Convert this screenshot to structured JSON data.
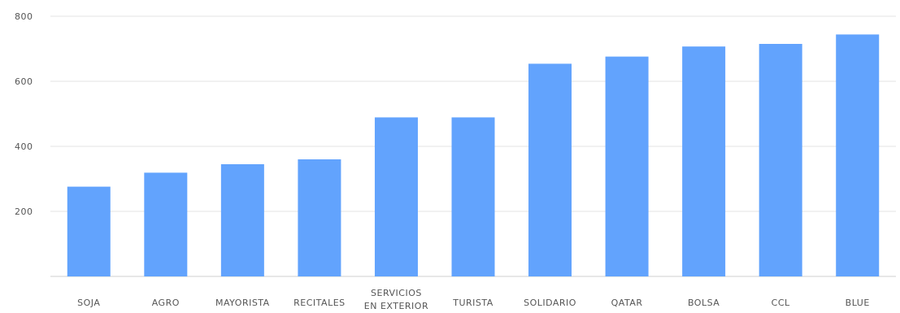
{
  "chart_data": {
    "type": "bar",
    "title": "",
    "xlabel": "",
    "ylabel": "",
    "ylim": [
      0,
      800
    ],
    "yticks": [
      200,
      400,
      600,
      800
    ],
    "grid": true,
    "bar_color": "#62a3fd",
    "categories": [
      [
        "SOJA"
      ],
      [
        "AGRO"
      ],
      [
        "MAYORISTA"
      ],
      [
        "RECITALES"
      ],
      [
        "SERVICIOS",
        "EN EXTERIOR"
      ],
      [
        "TURISTA"
      ],
      [
        "SOLIDARIO"
      ],
      [
        "QATAR"
      ],
      [
        "BOLSA"
      ],
      [
        "CCL"
      ],
      [
        "BLUE"
      ]
    ],
    "values": [
      276,
      319,
      345,
      360,
      489,
      489,
      654,
      676,
      707,
      715,
      744
    ]
  }
}
